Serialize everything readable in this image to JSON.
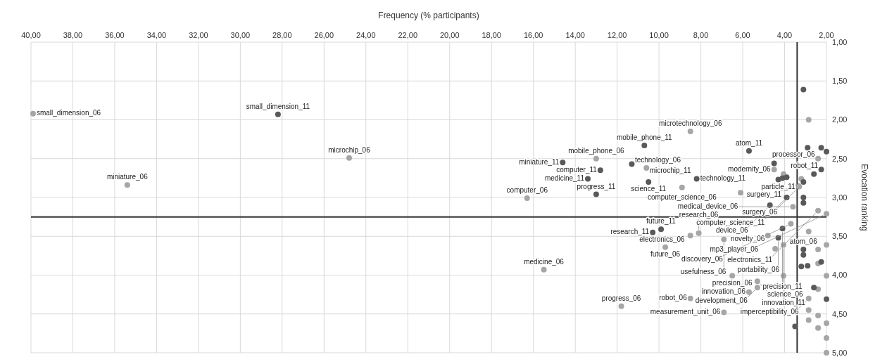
{
  "chart_data": {
    "type": "scatter",
    "xlabel": "Frequency (% participants)",
    "ylabel": "Evocation ranking",
    "xlim": [
      40,
      2
    ],
    "ylim": [
      5,
      1
    ],
    "xticks": [
      {
        "value": 40,
        "label": "40,00"
      },
      {
        "value": 38,
        "label": "38,00"
      },
      {
        "value": 36,
        "label": "36,00"
      },
      {
        "value": 34,
        "label": "34,00"
      },
      {
        "value": 32,
        "label": "32,00"
      },
      {
        "value": 30,
        "label": "30,00"
      },
      {
        "value": 28,
        "label": "28,00"
      },
      {
        "value": 26,
        "label": "26,00"
      },
      {
        "value": 24,
        "label": "24,00"
      },
      {
        "value": 22,
        "label": "22,00"
      },
      {
        "value": 20,
        "label": "20,00"
      },
      {
        "value": 18,
        "label": "18,00"
      },
      {
        "value": 16,
        "label": "16,00"
      },
      {
        "value": 14,
        "label": "14,00"
      },
      {
        "value": 12,
        "label": "12,00"
      },
      {
        "value": 10,
        "label": "10,00"
      },
      {
        "value": 8,
        "label": "8,00"
      },
      {
        "value": 6,
        "label": "6,00"
      },
      {
        "value": 4,
        "label": "4,00"
      },
      {
        "value": 2,
        "label": "2,00"
      }
    ],
    "yticks": [
      {
        "value": 1,
        "label": "1,00"
      },
      {
        "value": 1.5,
        "label": "1,50"
      },
      {
        "value": 2,
        "label": "2,00"
      },
      {
        "value": 2.5,
        "label": "2,50"
      },
      {
        "value": 3,
        "label": "3,00"
      },
      {
        "value": 3.5,
        "label": "3,50"
      },
      {
        "value": 4,
        "label": "4,00"
      },
      {
        "value": 4.5,
        "label": "4,50"
      },
      {
        "value": 5,
        "label": "5,00"
      }
    ],
    "grid": true,
    "marker": "circle",
    "ref_lines": [
      {
        "axis": "x",
        "value": 3.4,
        "color": "#333333"
      },
      {
        "axis": "y",
        "value": 3.25,
        "color": "#333333"
      }
    ],
    "series": [
      {
        "color": "#a6a6a6",
        "x": [
          39.9,
          24.8,
          35.4,
          13.0,
          16.3,
          8.5,
          10.6,
          8.9,
          4.5,
          2.4,
          4.05,
          3.2,
          3.3,
          6.1,
          3.6,
          2.4,
          2.0,
          2.85,
          8.5,
          8.1,
          9.7,
          6.9,
          3.7,
          4.8,
          4.05,
          4.45,
          2.85,
          2.4,
          2.0,
          2.4,
          6.5,
          4.05,
          2.0,
          5.3,
          5.3,
          2.4,
          5.7,
          2.85,
          8.5,
          11.8,
          6.9,
          2.85,
          2.4,
          2.85,
          2.0,
          2.4,
          2.0,
          2.0,
          15.5
        ],
        "values": [
          1.92,
          2.49,
          2.84,
          2.5,
          3.01,
          2.15,
          2.62,
          2.87,
          2.64,
          2.5,
          2.7,
          2.76,
          2.86,
          2.94,
          3.12,
          3.17,
          3.21,
          2.0,
          3.49,
          3.46,
          3.64,
          3.54,
          3.34,
          3.49,
          3.61,
          3.66,
          3.44,
          3.67,
          3.61,
          3.85,
          4.01,
          4.01,
          4.01,
          4.08,
          4.16,
          4.18,
          4.22,
          4.3,
          4.3,
          4.4,
          4.48,
          4.45,
          4.52,
          4.58,
          4.62,
          4.68,
          4.81,
          5.0,
          3.93
        ]
      },
      {
        "color": "#595959",
        "x": [
          28.2,
          14.6,
          12.8,
          13.4,
          13.0,
          10.7,
          11.3,
          10.5,
          5.7,
          8.2,
          4.5,
          2.25,
          2.6,
          4.3,
          4.1,
          3.9,
          3.1,
          3.9,
          3.1,
          3.1,
          4.7,
          3.1,
          2.9,
          2.25,
          2.0,
          10.3,
          9.9,
          4.1,
          4.3,
          3.1,
          3.1,
          3.2,
          2.9,
          2.25,
          2.6,
          2.0,
          3.5
        ],
        "values": [
          1.93,
          2.55,
          2.65,
          2.76,
          2.96,
          2.33,
          2.57,
          2.8,
          2.4,
          2.76,
          2.56,
          2.64,
          2.7,
          2.77,
          2.75,
          2.74,
          2.8,
          3.0,
          3.0,
          3.07,
          3.1,
          1.61,
          2.36,
          2.36,
          2.41,
          3.45,
          3.41,
          3.4,
          3.52,
          3.67,
          3.74,
          3.89,
          3.88,
          3.83,
          4.16,
          4.31,
          4.66
        ]
      }
    ],
    "annotations": [
      {
        "text": "small_dimension_06",
        "x": 39.9,
        "y": 1.92
      },
      {
        "text": "small_dimension_11",
        "x": 28.2,
        "y": 1.93
      },
      {
        "text": "microchip_06",
        "x": 24.8,
        "y": 2.49
      },
      {
        "text": "miniature_06",
        "x": 35.4,
        "y": 2.84
      },
      {
        "text": "mobile_phone_06",
        "x": 13.0,
        "y": 2.5
      },
      {
        "text": "miniature_11",
        "x": 14.6,
        "y": 2.55
      },
      {
        "text": "computer_11",
        "x": 12.8,
        "y": 2.65
      },
      {
        "text": "medicine_11",
        "x": 13.4,
        "y": 2.76
      },
      {
        "text": "progress_11",
        "x": 13.0,
        "y": 2.96
      },
      {
        "text": "computer_06",
        "x": 16.3,
        "y": 3.01
      },
      {
        "text": "mobile_phone_11",
        "x": 10.7,
        "y": 2.33
      },
      {
        "text": "technology_06",
        "x": 11.3,
        "y": 2.57
      },
      {
        "text": "microchip_11",
        "x": 10.6,
        "y": 2.62
      },
      {
        "text": "science_11",
        "x": 10.5,
        "y": 2.8
      },
      {
        "text": "computer_science_06",
        "x": 8.9,
        "y": 2.87
      },
      {
        "text": "microtechnology_06",
        "x": 8.5,
        "y": 2.15
      },
      {
        "text": "atom_11",
        "x": 5.7,
        "y": 2.4
      },
      {
        "text": "technology_11",
        "x": 8.2,
        "y": 2.76
      },
      {
        "text": "modernity_06",
        "x": 4.5,
        "y": 2.64
      },
      {
        "text": "processor_06",
        "x": 2.4,
        "y": 2.5
      },
      {
        "text": "robot_11",
        "x": 2.25,
        "y": 2.64
      },
      {
        "text": "particle_11",
        "x": 4.3,
        "y": 2.77
      },
      {
        "text": "surgery_11",
        "x": 3.1,
        "y": 2.8
      },
      {
        "text": "surgery_06",
        "x": 3.3,
        "y": 2.86
      },
      {
        "text": "computer_science_11",
        "x": 3.9,
        "y": 3.0
      },
      {
        "text": "medical_device_06",
        "x": 3.6,
        "y": 3.12
      },
      {
        "text": "device_06",
        "x": 4.7,
        "y": 3.1
      },
      {
        "text": "electronics_11",
        "x": 2.4,
        "y": 3.17
      },
      {
        "text": "mp3_player_06",
        "x": 2.0,
        "y": 3.21
      },
      {
        "text": "discovery_06",
        "x": 3.7,
        "y": 3.34
      },
      {
        "text": "research_11",
        "x": 10.3,
        "y": 3.45
      },
      {
        "text": "electronics_06",
        "x": 8.5,
        "y": 3.49
      },
      {
        "text": "future_11",
        "x": 9.9,
        "y": 3.41
      },
      {
        "text": "research_06",
        "x": 8.1,
        "y": 3.46
      },
      {
        "text": "future_06",
        "x": 9.7,
        "y": 3.64
      },
      {
        "text": "usefulness_06",
        "x": 6.9,
        "y": 3.54
      },
      {
        "text": "precision_11",
        "x": 4.1,
        "y": 3.4
      },
      {
        "text": "novelty_06",
        "x": 4.8,
        "y": 3.49
      },
      {
        "text": "portability_06",
        "x": 4.3,
        "y": 3.52
      },
      {
        "text": "innovation_11",
        "x": 4.05,
        "y": 3.61
      },
      {
        "text": "atom_06",
        "x": 3.1,
        "y": 3.67
      },
      {
        "text": "precision_06",
        "x": 6.5,
        "y": 4.01
      },
      {
        "text": "science_06",
        "x": 5.3,
        "y": 4.08
      },
      {
        "text": "development_06",
        "x": 5.3,
        "y": 4.16
      },
      {
        "text": "innovation_06",
        "x": 5.7,
        "y": 4.22
      },
      {
        "text": "imperceptibility_06",
        "x": 2.85,
        "y": 4.3
      },
      {
        "text": "robot_06",
        "x": 8.5,
        "y": 4.3
      },
      {
        "text": "progress_06",
        "x": 11.8,
        "y": 4.4
      },
      {
        "text": "measurement_unit_06",
        "x": 6.9,
        "y": 4.48
      },
      {
        "text": "medicine_06",
        "x": 15.5,
        "y": 3.93
      }
    ]
  }
}
